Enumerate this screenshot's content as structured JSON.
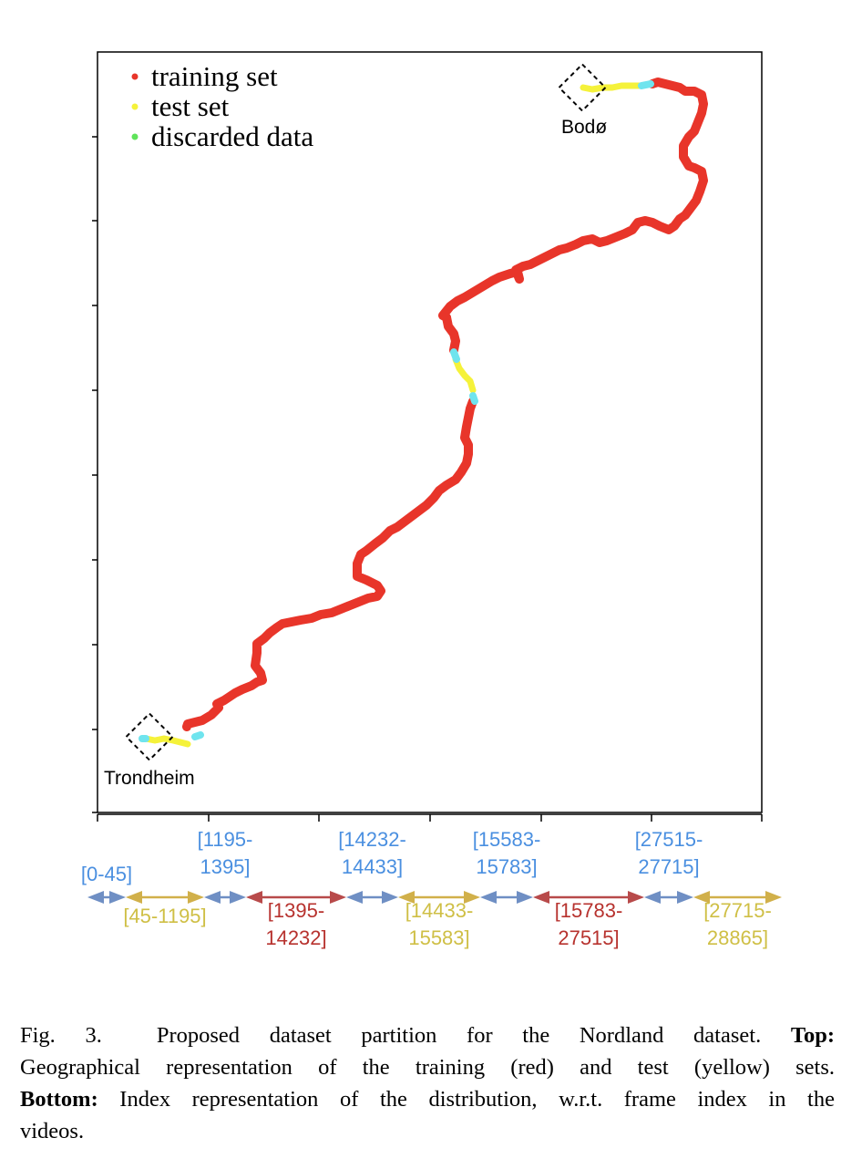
{
  "figure": {
    "map": {
      "legend": [
        {
          "label": "training set",
          "color": "#e8352a"
        },
        {
          "label": "test set",
          "color": "#f5f23a"
        },
        {
          "label": "discarded data",
          "color": "#5fe35a"
        }
      ],
      "locations": {
        "start": "Trondheim",
        "end": "Bodø"
      },
      "colors": {
        "training": "#e8352a",
        "test": "#f5f23a",
        "boundary": "#6fe4ee"
      }
    },
    "index_bar": {
      "segments": [
        {
          "label_line1": "[0-45]",
          "label_line2": "",
          "color": "#6f8fc4",
          "label_color": "#4a8fe0",
          "label_pos": "above"
        },
        {
          "label_line1": "[45-1195]",
          "label_line2": "",
          "color": "#d1b04a",
          "label_color": "#cfbf45",
          "label_pos": "below"
        },
        {
          "label_line1": "[1195-",
          "label_line2": "1395]",
          "color": "#6f8fc4",
          "label_color": "#4a8fe0",
          "label_pos": "above"
        },
        {
          "label_line1": "[1395-",
          "label_line2": "14232]",
          "color": "#b84a4a",
          "label_color": "#b7322e",
          "label_pos": "below"
        },
        {
          "label_line1": "[14232-",
          "label_line2": "14433]",
          "color": "#6f8fc4",
          "label_color": "#4a8fe0",
          "label_pos": "above"
        },
        {
          "label_line1": "[14433-",
          "label_line2": "15583]",
          "color": "#d1b04a",
          "label_color": "#cfbf45",
          "label_pos": "below"
        },
        {
          "label_line1": "[15583-",
          "label_line2": "15783]",
          "color": "#6f8fc4",
          "label_color": "#4a8fe0",
          "label_pos": "above"
        },
        {
          "label_line1": "[15783-",
          "label_line2": "27515]",
          "color": "#b84a4a",
          "label_color": "#b7322e",
          "label_pos": "below"
        },
        {
          "label_line1": "[27515-",
          "label_line2": "27715]",
          "color": "#6f8fc4",
          "label_color": "#4a8fe0",
          "label_pos": "above"
        },
        {
          "label_line1": "[27715-",
          "label_line2": "28865]",
          "color": "#d1b04a",
          "label_color": "#cfbf45",
          "label_pos": "below"
        }
      ]
    }
  },
  "caption": {
    "fig_label": "Fig. 3.",
    "line1_text": "Proposed dataset partition for the Nordland dataset.",
    "top_bold": "Top:",
    "line2_text": "Geographical representation of the training (red) and test (yellow) sets.",
    "bottom_bold": "Bottom:",
    "line3_text": "Index representation of the distribution, w.r.t. frame index in the",
    "line4_text": "videos."
  }
}
